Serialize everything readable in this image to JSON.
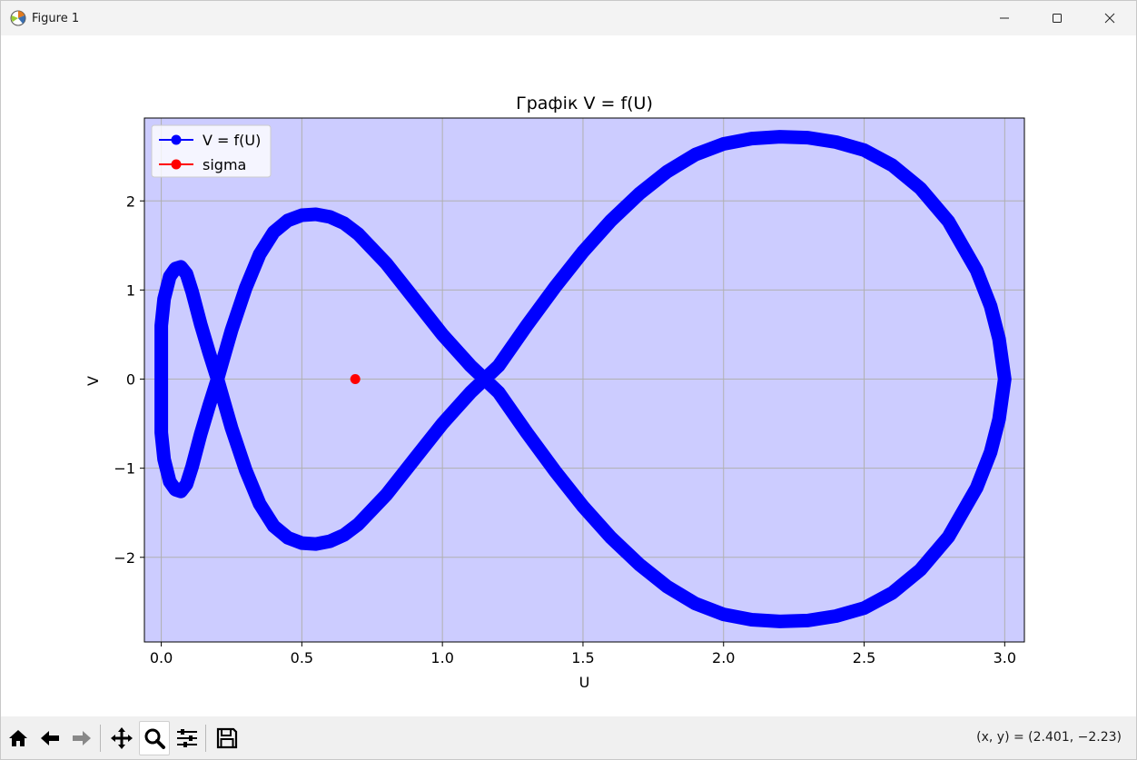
{
  "window": {
    "title": "Figure 1",
    "icons": {
      "app": "matplotlib-logo-icon",
      "minimize": "minimize-icon",
      "maximize": "maximize-icon",
      "close": "close-icon"
    }
  },
  "toolbar": {
    "buttons": [
      {
        "name": "home",
        "icon": "home-icon"
      },
      {
        "name": "back",
        "icon": "arrow-left-icon"
      },
      {
        "name": "forward",
        "icon": "arrow-right-icon"
      },
      {
        "name": "pan",
        "icon": "move-icon"
      },
      {
        "name": "zoom",
        "icon": "magnifier-icon",
        "active": true
      },
      {
        "name": "configure-subplots",
        "icon": "sliders-icon"
      },
      {
        "name": "save",
        "icon": "floppy-disk-icon"
      }
    ],
    "coordinate_readout": "(x, y) = (2.401, −2.23)"
  },
  "colors": {
    "axes_background": "#ccccff",
    "curve": "#0000ff",
    "sigma_marker": "#ff0000",
    "grid": "#b0b0b0"
  },
  "chart_data": {
    "type": "line",
    "title": "Графік V = f(U)",
    "xlabel": "U",
    "ylabel": "V",
    "xlim": [
      -0.06,
      3.07
    ],
    "ylim": [
      -2.95,
      2.93
    ],
    "xticks": [
      0.0,
      0.5,
      1.0,
      1.5,
      2.0,
      2.5,
      3.0
    ],
    "xtick_labels": [
      "0.0",
      "0.5",
      "1.0",
      "1.5",
      "2.0",
      "2.5",
      "3.0"
    ],
    "yticks": [
      -2,
      -1,
      0,
      1,
      2
    ],
    "ytick_labels": [
      "−2",
      "−1",
      "0",
      "1",
      "2"
    ],
    "grid": true,
    "legend_position": "top-left",
    "series": [
      {
        "name": "V = f(U)",
        "color": "#0000ff",
        "marker": "o",
        "x": [
          0.0,
          0.0,
          0.01,
          0.03,
          0.05,
          0.07,
          0.09,
          0.11,
          0.14,
          0.17,
          0.2,
          0.25,
          0.3,
          0.35,
          0.4,
          0.45,
          0.5,
          0.55,
          0.6,
          0.65,
          0.7,
          0.8,
          0.9,
          1.0,
          1.1,
          1.15,
          1.2,
          1.3,
          1.4,
          1.5,
          1.6,
          1.7,
          1.8,
          1.9,
          2.0,
          2.1,
          2.2,
          2.3,
          2.4,
          2.5,
          2.6,
          2.7,
          2.8,
          2.9,
          2.95,
          2.98,
          3.0,
          2.98,
          2.95,
          2.9,
          2.8,
          2.7,
          2.6,
          2.5,
          2.4,
          2.3,
          2.2,
          2.1,
          2.0,
          1.9,
          1.8,
          1.7,
          1.6,
          1.5,
          1.4,
          1.3,
          1.2,
          1.15,
          1.1,
          1.0,
          0.9,
          0.8,
          0.7,
          0.65,
          0.6,
          0.55,
          0.5,
          0.45,
          0.4,
          0.35,
          0.3,
          0.25,
          0.2,
          0.17,
          0.14,
          0.11,
          0.09,
          0.07,
          0.05,
          0.03,
          0.01,
          0.0,
          0.0
        ],
        "y": [
          0.0,
          0.6,
          0.9,
          1.15,
          1.24,
          1.26,
          1.18,
          0.98,
          0.62,
          0.3,
          0.0,
          -0.55,
          -1.02,
          -1.4,
          -1.65,
          -1.78,
          -1.84,
          -1.85,
          -1.82,
          -1.75,
          -1.63,
          -1.3,
          -0.9,
          -0.5,
          -0.15,
          0.0,
          0.15,
          0.6,
          1.03,
          1.43,
          1.78,
          2.08,
          2.33,
          2.52,
          2.64,
          2.7,
          2.72,
          2.71,
          2.66,
          2.57,
          2.4,
          2.14,
          1.77,
          1.22,
          0.82,
          0.45,
          0.0,
          -0.45,
          -0.82,
          -1.22,
          -1.77,
          -2.14,
          -2.4,
          -2.57,
          -2.66,
          -2.71,
          -2.72,
          -2.7,
          -2.64,
          -2.52,
          -2.33,
          -2.08,
          -1.78,
          -1.43,
          -1.03,
          -0.6,
          -0.15,
          0.0,
          0.15,
          0.5,
          0.9,
          1.3,
          1.63,
          1.75,
          1.82,
          1.85,
          1.84,
          1.78,
          1.65,
          1.4,
          1.02,
          0.55,
          0.0,
          -0.3,
          -0.62,
          -0.98,
          -1.18,
          -1.26,
          -1.24,
          -1.15,
          -0.9,
          -0.6,
          0.0
        ]
      },
      {
        "name": "sigma",
        "color": "#ff0000",
        "marker": "o",
        "x": [
          0.69
        ],
        "y": [
          0.0
        ]
      }
    ]
  }
}
